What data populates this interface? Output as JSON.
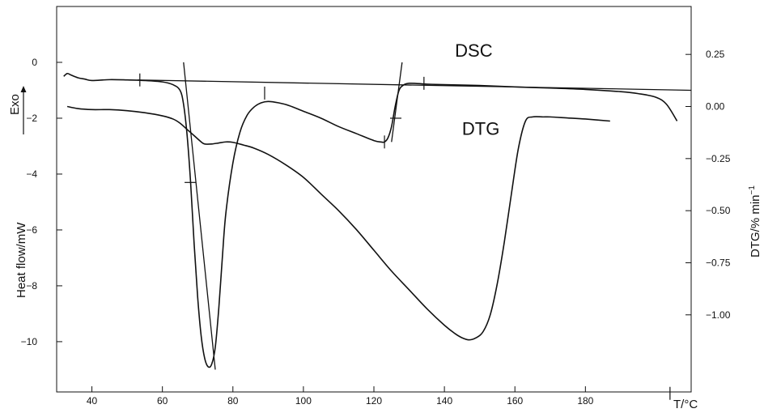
{
  "chart_data": {
    "type": "line",
    "title": "",
    "xlabel": "T/°C",
    "ylabel_left": "Heat flow/mW",
    "ylabel_right": "DTG/% min",
    "ylabel_right_superscript": "−1",
    "exo_label": "Exo",
    "grid": false,
    "x_ticks": [
      40,
      60,
      80,
      100,
      120,
      140,
      160,
      180
    ],
    "x_tick_labels": [
      "40",
      "60",
      "80",
      "100",
      "120",
      "140",
      "160",
      "180"
    ],
    "xlim": [
      30,
      210
    ],
    "left_ticks": [
      0,
      -2,
      -4,
      -6,
      -8,
      -10
    ],
    "left_tick_labels": [
      "0",
      "−2",
      "−4",
      "−6",
      "−8",
      "−10"
    ],
    "ylim_left": [
      -11.8,
      2
    ],
    "right_ticks": [
      0.25,
      0,
      -0.25,
      -0.5,
      -0.75,
      -1
    ],
    "right_tick_labels": [
      "0.25",
      "0.00",
      "−0.25",
      "−0.50",
      "−0.75",
      "−1.00"
    ],
    "ylim_right": [
      -1.37,
      0.48
    ],
    "series": [
      {
        "name": "DSC",
        "axis": "left",
        "x": [
          32,
          33,
          34,
          36,
          38,
          40,
          45,
          50,
          55,
          60,
          63,
          65,
          66,
          67,
          68,
          69,
          70,
          71,
          72,
          73,
          74,
          75,
          76,
          77,
          78,
          80,
          82,
          84,
          86,
          88,
          90,
          93,
          96,
          100,
          105,
          110,
          115,
          120,
          122,
          123,
          124,
          125,
          126,
          127,
          128,
          130,
          135,
          140,
          150,
          160,
          170,
          180,
          190,
          195,
          200,
          203,
          206
        ],
        "y": [
          -0.5,
          -0.4,
          -0.45,
          -0.55,
          -0.6,
          -0.65,
          -0.62,
          -0.63,
          -0.65,
          -0.7,
          -0.8,
          -1.0,
          -1.5,
          -2.6,
          -4.3,
          -6.5,
          -8.4,
          -9.8,
          -10.6,
          -10.9,
          -10.8,
          -10.2,
          -8.8,
          -7.0,
          -5.4,
          -3.6,
          -2.5,
          -1.9,
          -1.6,
          -1.45,
          -1.4,
          -1.45,
          -1.55,
          -1.75,
          -2.0,
          -2.3,
          -2.55,
          -2.8,
          -2.85,
          -2.85,
          -2.7,
          -2.3,
          -1.6,
          -1.05,
          -0.85,
          -0.75,
          -0.78,
          -0.8,
          -0.83,
          -0.88,
          -0.92,
          -0.97,
          -1.05,
          -1.12,
          -1.25,
          -1.5,
          -2.1
        ]
      },
      {
        "name": "DTG",
        "axis": "right",
        "x": [
          33,
          36,
          40,
          45,
          50,
          55,
          60,
          63,
          65,
          67,
          69,
          71,
          72,
          74,
          76,
          78,
          80,
          83,
          86,
          90,
          95,
          100,
          105,
          110,
          115,
          120,
          125,
          130,
          135,
          140,
          143,
          145,
          147,
          149,
          151,
          153,
          155,
          157,
          159,
          161,
          163,
          165,
          168,
          170,
          175,
          180,
          187
        ],
        "y": [
          0.0,
          -0.01,
          -0.015,
          -0.015,
          -0.02,
          -0.03,
          -0.045,
          -0.06,
          -0.08,
          -0.11,
          -0.14,
          -0.17,
          -0.18,
          -0.18,
          -0.175,
          -0.17,
          -0.172,
          -0.185,
          -0.2,
          -0.23,
          -0.28,
          -0.34,
          -0.42,
          -0.5,
          -0.59,
          -0.69,
          -0.79,
          -0.88,
          -0.97,
          -1.05,
          -1.09,
          -1.11,
          -1.12,
          -1.11,
          -1.08,
          -1.0,
          -0.85,
          -0.65,
          -0.42,
          -0.2,
          -0.07,
          -0.05,
          -0.05,
          -0.05,
          -0.055,
          -0.06,
          -0.07
        ]
      }
    ],
    "series_labels": [
      {
        "text": "DSC",
        "x": 143,
        "y": 0.2,
        "axis": "left"
      },
      {
        "text": "DTG",
        "x": 145,
        "y": -2.6,
        "axis": "left"
      }
    ],
    "construction_lines": [
      {
        "axis": "left",
        "x": [
          53,
          210
        ],
        "y": [
          -0.63,
          -1.0
        ]
      },
      {
        "axis": "left",
        "x": [
          66,
          75
        ],
        "y": [
          0.0,
          -11.0
        ]
      },
      {
        "axis": "left",
        "x": [
          125,
          128
        ],
        "y": [
          -2.85,
          0.0
        ]
      }
    ],
    "tick_marks": [
      {
        "axis": "left",
        "x": 53.6,
        "y": -0.63,
        "orient": "v"
      },
      {
        "axis": "left",
        "x": 67.9,
        "y": -4.3,
        "orient": "h"
      },
      {
        "axis": "left",
        "x": 89,
        "y": -1.1,
        "orient": "v"
      },
      {
        "axis": "left",
        "x": 123,
        "y": -2.85,
        "orient": "v"
      },
      {
        "axis": "left",
        "x": 126.2,
        "y": -2.0,
        "orient": "h"
      },
      {
        "axis": "left",
        "x": 134.2,
        "y": -0.75,
        "orient": "v"
      },
      {
        "axis": "left",
        "x": 204,
        "y": -11.85,
        "orient": "v"
      }
    ]
  }
}
